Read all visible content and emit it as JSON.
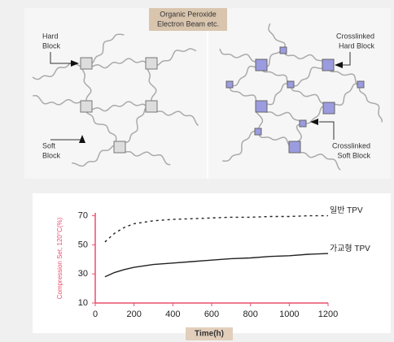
{
  "diagram": {
    "process_label": [
      "Organic Peroxide",
      "Electron Beam etc."
    ],
    "hard_block": [
      "Hard",
      "Block"
    ],
    "soft_block": [
      "Soft",
      "Block"
    ],
    "crosslinked_hard_block": [
      "Crosslinked",
      "Hard Block"
    ],
    "crosslinked_soft_block": [
      "Crosslinked",
      "Soft Block"
    ]
  },
  "chart_data": {
    "type": "line",
    "y_label": "Compression Set, 120°C(%)",
    "x_label": "Time(h)",
    "x": [
      50,
      100,
      150,
      200,
      300,
      400,
      500,
      600,
      700,
      800,
      900,
      1000,
      1100,
      1200
    ],
    "series": [
      {
        "name": "일반 TPV",
        "color": "#222222",
        "style": "dashed",
        "values": [
          52,
          58,
          62,
          64.5,
          66.5,
          67.5,
          68,
          68.5,
          69,
          69,
          69.5,
          69.5,
          70,
          70
        ]
      },
      {
        "name": "가교형 TPV",
        "color": "#222222",
        "style": "solid",
        "values": [
          28,
          31,
          33,
          34.5,
          36.5,
          37.5,
          38.5,
          39.5,
          40.5,
          41,
          42,
          42.5,
          43.5,
          44
        ]
      }
    ],
    "xlim": [
      0,
      1200
    ],
    "xticks": [
      0,
      200,
      400,
      600,
      800,
      1000,
      1200
    ],
    "ylim": [
      10,
      72
    ],
    "yticks": [
      10,
      30,
      50,
      70
    ],
    "axis_color": "#e8506a"
  }
}
